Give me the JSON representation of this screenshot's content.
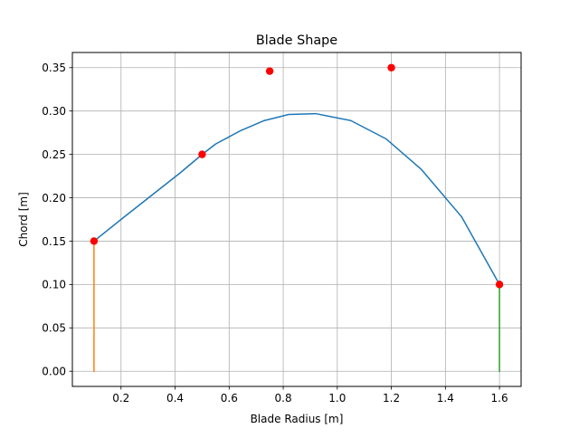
{
  "chart_data": {
    "type": "line",
    "title": "Blade Shape",
    "xlabel": "Blade Radius [m]",
    "ylabel": "Chord [m]",
    "xlim": [
      0.02,
      1.68
    ],
    "ylim": [
      -0.0175,
      0.3675
    ],
    "x_ticks": [
      0.2,
      0.4,
      0.6,
      0.8,
      1.0,
      1.2,
      1.4,
      1.6
    ],
    "x_tick_labels": [
      "0.2",
      "0.4",
      "0.6",
      "0.8",
      "1.0",
      "1.2",
      "1.4",
      "1.6"
    ],
    "y_ticks": [
      0.0,
      0.05,
      0.1,
      0.15,
      0.2,
      0.25,
      0.3,
      0.35
    ],
    "y_tick_labels": [
      "0.00",
      "0.05",
      "0.10",
      "0.15",
      "0.20",
      "0.25",
      "0.30",
      "0.35"
    ],
    "grid": true,
    "colors": {
      "curve": "#1f77b4",
      "root_line": "#ff7f0e",
      "tip_line": "#2ca02c",
      "control_points": "#ff0000",
      "grid": "#b0b0b0"
    },
    "series": [
      {
        "kind": "line",
        "x": [
          0.1,
          0.2,
          0.31,
          0.42,
          0.5,
          0.55,
          0.64,
          0.73,
          0.82,
          0.92,
          1.05,
          1.18,
          1.31,
          1.46,
          1.6
        ],
        "y": [
          0.15,
          0.175,
          0.202,
          0.229,
          0.25,
          0.262,
          0.277,
          0.289,
          0.296,
          0.297,
          0.289,
          0.268,
          0.233,
          0.178,
          0.1
        ]
      },
      {
        "kind": "line",
        "x": [
          0.1,
          0.1
        ],
        "y": [
          0.0,
          0.15
        ]
      },
      {
        "kind": "line",
        "x": [
          1.6,
          1.6
        ],
        "y": [
          0.0,
          0.1
        ]
      },
      {
        "kind": "points",
        "x": [
          0.1,
          0.5,
          0.75,
          1.2,
          1.6
        ],
        "y": [
          0.15,
          0.25,
          0.346,
          0.35,
          0.1
        ]
      }
    ]
  }
}
